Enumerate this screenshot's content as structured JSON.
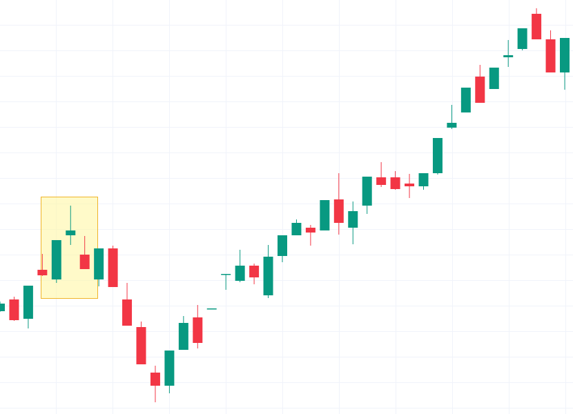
{
  "chart_data": {
    "type": "candlestick",
    "open": [
      149,
      166,
      138,
      209,
      195,
      259,
      231,
      195,
      240,
      166,
      126,
      60,
      41,
      93,
      140,
      153,
      203,
      193,
      215,
      172,
      229,
      259,
      270,
      266,
      311,
      270,
      302,
      343,
      343,
      334,
      330,
      349,
      415,
      437,
      489,
      471,
      517,
      529,
      580,
      543,
      495
    ],
    "high": [
      163,
      170,
      186,
      232,
      252,
      302,
      258,
      240,
      244,
      190,
      134,
      70,
      92,
      142,
      158,
      153,
      203,
      238,
      218,
      245,
      259,
      282,
      274,
      310,
      349,
      308,
      344,
      365,
      352,
      348,
      349,
      400,
      448,
      473,
      506,
      502,
      542,
      559,
      588,
      556,
      545
    ],
    "low": [
      148,
      135,
      124,
      200,
      190,
      245,
      210,
      185,
      184,
      128,
      72,
      17,
      30,
      93,
      95,
      153,
      180,
      191,
      188,
      168,
      220,
      259,
      244,
      266,
      260,
      246,
      290,
      329,
      325,
      313,
      325,
      347,
      413,
      437,
      451,
      471,
      503,
      527,
      543,
      495,
      470
    ],
    "close": [
      160,
      136,
      186,
      201,
      252,
      266,
      210,
      240,
      184,
      128,
      72,
      41,
      92,
      132,
      103,
      153,
      203,
      215,
      198,
      228,
      259,
      277,
      263,
      310,
      277,
      294,
      344,
      332,
      326,
      330,
      349,
      400,
      422,
      473,
      451,
      502,
      520,
      559,
      543,
      495,
      545
    ],
    "ylim": [
      0,
      600
    ],
    "up_color": "#089981",
    "down_color": "#f23645"
  }
}
